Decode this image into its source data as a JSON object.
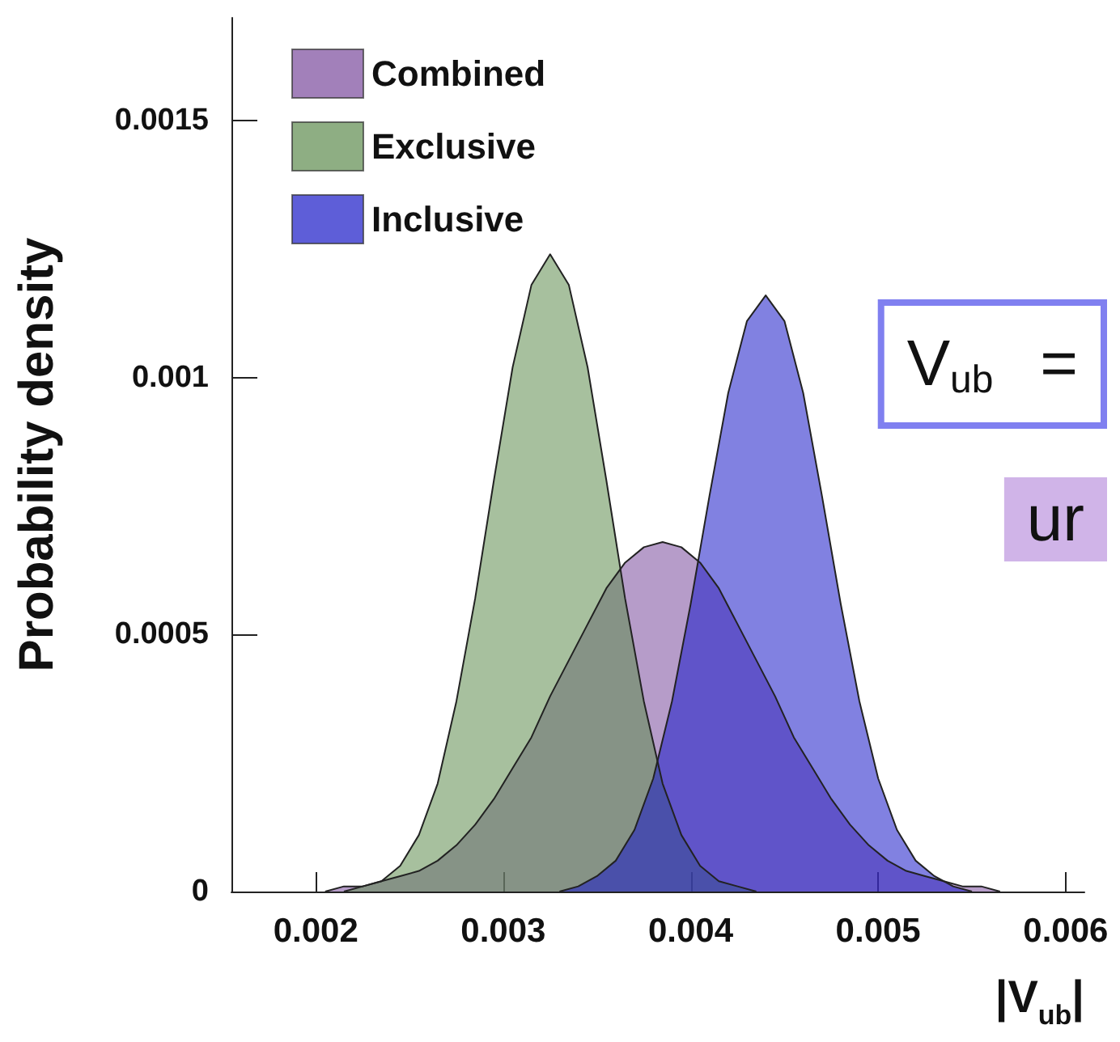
{
  "chart_data": {
    "type": "area",
    "xlabel": "|V$_{ub}$|",
    "ylabel": "Probability density",
    "annotations": [
      "V$_{ub}$ =",
      "ur"
    ],
    "xlim": [
      0.00155,
      0.0061
    ],
    "xticks": [
      0.002,
      0.003,
      0.004,
      0.005,
      0.006
    ],
    "ylim": [
      0,
      0.0017
    ],
    "yticks": [
      0,
      0.0005,
      0.001,
      0.0015
    ],
    "grid": false,
    "legend": "top left",
    "series": [
      {
        "name": "Combined",
        "color": "#7a4a9c",
        "x": [
          0.00205,
          0.00215,
          0.00225,
          0.00235,
          0.00245,
          0.00255,
          0.00265,
          0.00275,
          0.00285,
          0.00295,
          0.00305,
          0.00315,
          0.00325,
          0.00335,
          0.00345,
          0.00355,
          0.00365,
          0.00375,
          0.00385,
          0.00395,
          0.00405,
          0.00415,
          0.00425,
          0.00435,
          0.00445,
          0.00455,
          0.00465,
          0.00475,
          0.00485,
          0.00495,
          0.00505,
          0.00515,
          0.00525,
          0.00535,
          0.00545,
          0.00555,
          0.00565
        ],
        "values": [
          0,
          1e-05,
          1e-05,
          2e-05,
          3e-05,
          4e-05,
          6e-05,
          9e-05,
          0.00013,
          0.00018,
          0.00024,
          0.0003,
          0.00038,
          0.00045,
          0.00052,
          0.00059,
          0.00064,
          0.00067,
          0.00068,
          0.00067,
          0.00064,
          0.00059,
          0.00052,
          0.00045,
          0.00038,
          0.0003,
          0.00024,
          0.00018,
          0.00013,
          9e-05,
          6e-05,
          4e-05,
          3e-05,
          2e-05,
          1e-05,
          1e-05,
          0
        ]
      },
      {
        "name": "Exclusive",
        "color": "#5e8c4e",
        "x": [
          0.00215,
          0.00225,
          0.00235,
          0.00245,
          0.00255,
          0.00265,
          0.00275,
          0.00285,
          0.00295,
          0.00305,
          0.00315,
          0.00325,
          0.00335,
          0.00345,
          0.00355,
          0.00365,
          0.00375,
          0.00385,
          0.00395,
          0.00405,
          0.00415,
          0.00425,
          0.00435
        ],
        "values": [
          0,
          1e-05,
          2e-05,
          5e-05,
          0.00011,
          0.00021,
          0.00037,
          0.00057,
          0.0008,
          0.00102,
          0.00118,
          0.00124,
          0.00118,
          0.00102,
          0.0008,
          0.00057,
          0.00037,
          0.00021,
          0.00011,
          5e-05,
          2e-05,
          1e-05,
          0
        ]
      },
      {
        "name": "Inclusive",
        "color": "#1a1ac8",
        "x": [
          0.0033,
          0.0034,
          0.0035,
          0.0036,
          0.0037,
          0.0038,
          0.0039,
          0.004,
          0.0041,
          0.0042,
          0.0043,
          0.0044,
          0.0045,
          0.0046,
          0.0047,
          0.0048,
          0.0049,
          0.005,
          0.0051,
          0.0052,
          0.0053,
          0.0054,
          0.0055
        ],
        "values": [
          0,
          1e-05,
          3e-05,
          6e-05,
          0.00012,
          0.00022,
          0.00037,
          0.00056,
          0.00077,
          0.00097,
          0.00111,
          0.00116,
          0.00111,
          0.00097,
          0.00077,
          0.00056,
          0.00037,
          0.00022,
          0.00012,
          6e-05,
          3e-05,
          1e-05,
          0
        ]
      }
    ]
  }
}
